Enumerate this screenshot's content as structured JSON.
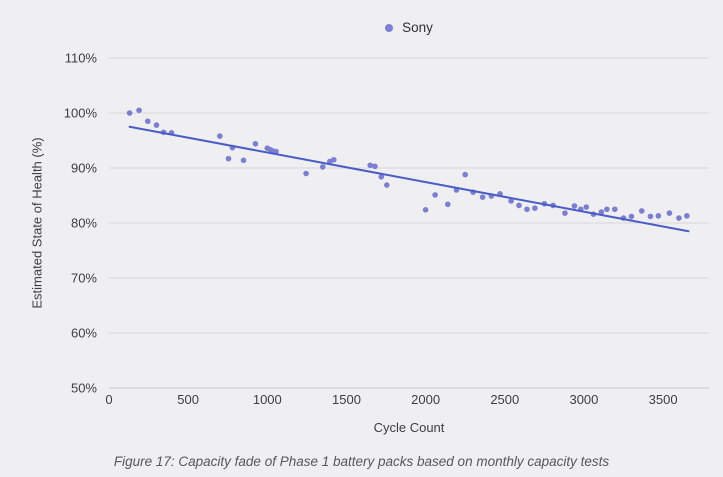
{
  "figure": {
    "caption": "Figure 17: Capacity fade of Phase 1 battery packs based on monthly capacity tests"
  },
  "chart_data": {
    "type": "scatter",
    "title": "",
    "xlabel": "Cycle Count",
    "ylabel": "Estimated State of Health (%)",
    "legend_position": "top-center",
    "grid": "horizontal",
    "xlim": [
      0,
      3790
    ],
    "ylim": [
      50,
      110
    ],
    "x_ticks": [
      {
        "value": 0,
        "label": "0"
      },
      {
        "value": 500,
        "label": "500"
      },
      {
        "value": 1000,
        "label": "1000"
      },
      {
        "value": 1500,
        "label": "1500"
      },
      {
        "value": 2000,
        "label": "2000"
      },
      {
        "value": 2500,
        "label": "2500"
      },
      {
        "value": 3000,
        "label": "3000"
      },
      {
        "value": 3500,
        "label": "3500"
      }
    ],
    "y_ticks": [
      {
        "value": 110,
        "label": "110%"
      },
      {
        "value": 100,
        "label": "100%"
      },
      {
        "value": 90,
        "label": "90%"
      },
      {
        "value": 80,
        "label": "80%"
      },
      {
        "value": 70,
        "label": "70%"
      },
      {
        "value": 60,
        "label": "60%"
      },
      {
        "value": 50,
        "label": "50%"
      }
    ],
    "colors": {
      "background": "#efeef0",
      "grid": "#d8d7d9",
      "baseline": "#c7c6c8",
      "tick_text": "#3e3e3e",
      "point": "#7b7fd2",
      "trend": "#4a5dc7"
    },
    "series": [
      {
        "name": "Sony",
        "color": "#7b7fd2",
        "points": [
          [
            130,
            100.0
          ],
          [
            190,
            100.5
          ],
          [
            245,
            98.5
          ],
          [
            300,
            97.8
          ],
          [
            345,
            96.5
          ],
          [
            395,
            96.4
          ],
          [
            700,
            95.8
          ],
          [
            755,
            91.7
          ],
          [
            780,
            93.7
          ],
          [
            850,
            91.4
          ],
          [
            925,
            94.4
          ],
          [
            1000,
            93.6
          ],
          [
            1020,
            93.3
          ],
          [
            1035,
            93.1
          ],
          [
            1055,
            93.0
          ],
          [
            1245,
            89.0
          ],
          [
            1350,
            90.2
          ],
          [
            1395,
            91.2
          ],
          [
            1420,
            91.5
          ],
          [
            1650,
            90.5
          ],
          [
            1680,
            90.3
          ],
          [
            1720,
            88.4
          ],
          [
            1755,
            86.9
          ],
          [
            2000,
            82.4
          ],
          [
            2060,
            85.1
          ],
          [
            2140,
            83.4
          ],
          [
            2195,
            86.0
          ],
          [
            2250,
            88.8
          ],
          [
            2300,
            85.6
          ],
          [
            2360,
            84.7
          ],
          [
            2415,
            84.9
          ],
          [
            2470,
            85.3
          ],
          [
            2540,
            84.0
          ],
          [
            2590,
            83.2
          ],
          [
            2640,
            82.5
          ],
          [
            2690,
            82.7
          ],
          [
            2750,
            83.5
          ],
          [
            2805,
            83.2
          ],
          [
            2880,
            81.8
          ],
          [
            2940,
            83.1
          ],
          [
            2980,
            82.5
          ],
          [
            3015,
            82.9
          ],
          [
            3060,
            81.6
          ],
          [
            3110,
            82.0
          ],
          [
            3145,
            82.5
          ],
          [
            3195,
            82.5
          ],
          [
            3250,
            80.9
          ],
          [
            3300,
            81.2
          ],
          [
            3365,
            82.2
          ],
          [
            3420,
            81.2
          ],
          [
            3470,
            81.3
          ],
          [
            3540,
            81.8
          ],
          [
            3600,
            80.9
          ],
          [
            3650,
            81.3
          ]
        ]
      }
    ],
    "trendline": {
      "series": "Sony",
      "color": "#4a5dc7",
      "points": [
        [
          130,
          97.5
        ],
        [
          3660,
          78.5
        ]
      ]
    }
  }
}
